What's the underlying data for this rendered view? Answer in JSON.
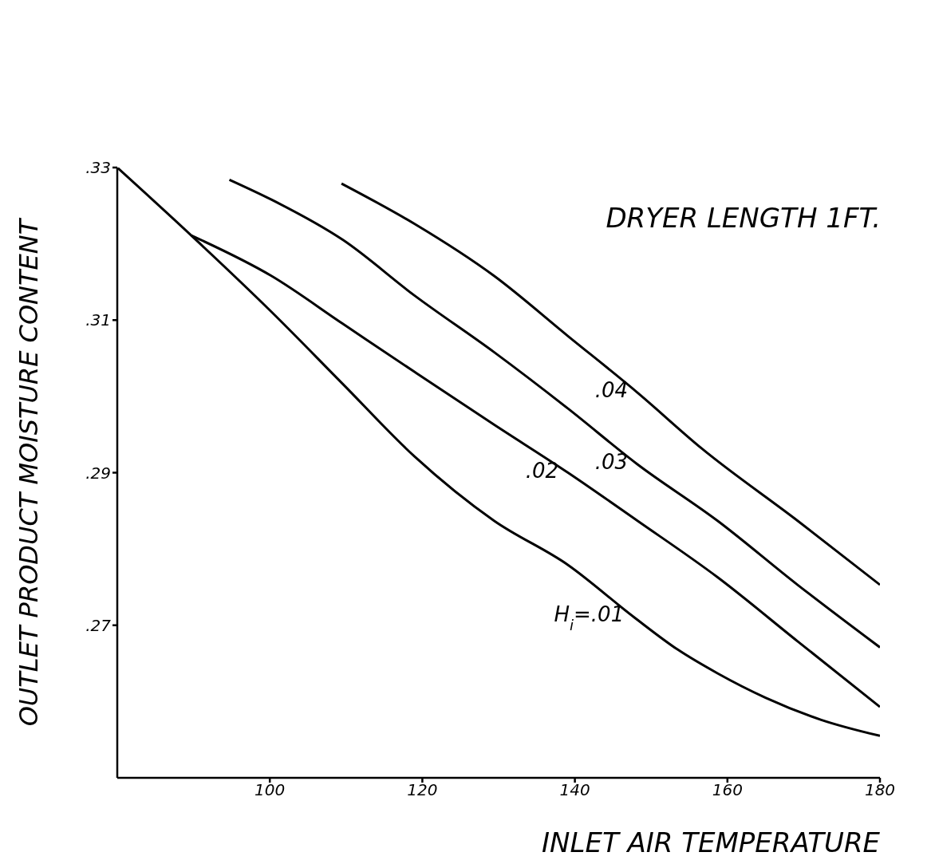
{
  "chart_data": {
    "type": "line",
    "xlabel": "INLET AIR TEMPERATURE",
    "ylabel": "OUTLET PRODUCT MOISTURE CONTENT",
    "annotations": [
      "DRYER LENGTH 1FT."
    ],
    "xlim": [
      80,
      180
    ],
    "xticks": [
      100,
      120,
      140,
      160,
      180
    ],
    "ylim": [
      0.25,
      0.33
    ],
    "yticks": [
      {
        "value": 0.27,
        "label": ".27"
      },
      {
        "value": 0.29,
        "label": ".29"
      },
      {
        "value": 0.31,
        "label": ".31"
      },
      {
        "value": 0.33,
        "label": ".33"
      }
    ],
    "grid": false,
    "legend": false,
    "marker": "none",
    "line_style": "solid",
    "series": [
      {
        "name": "H$_{i}$=.01",
        "color": "#000000",
        "x": [
          80,
          89.7,
          100.2,
          109.6,
          119.0,
          129.4,
          139.1,
          147.7,
          153.5,
          158.7,
          165.0,
          172.3,
          180
        ],
        "values": [
          0.33,
          0.3211,
          0.3111,
          0.3016,
          0.2921,
          0.2837,
          0.2779,
          0.2711,
          0.2668,
          0.2637,
          0.2605,
          0.2576,
          0.2555
        ]
      },
      {
        "name": ".02",
        "color": "#000000",
        "x": [
          89.7,
          100.2,
          109.6,
          119.0,
          129.4,
          139.1,
          148.2,
          158.7,
          169.2,
          180
        ],
        "values": [
          0.3211,
          0.3158,
          0.3095,
          0.3032,
          0.2963,
          0.29,
          0.2837,
          0.2763,
          0.2679,
          0.2593
        ]
      },
      {
        "name": ".03",
        "color": "#000000",
        "x": [
          94.7,
          100.2,
          109.6,
          119.0,
          129.4,
          139.1,
          148.2,
          158.7,
          169.2,
          180
        ],
        "values": [
          0.3284,
          0.3258,
          0.3205,
          0.3132,
          0.3058,
          0.2984,
          0.2911,
          0.2837,
          0.2753,
          0.2671
        ]
      },
      {
        "name": ".04",
        "color": "#000000",
        "x": [
          109.4,
          119.0,
          129.4,
          139.1,
          148.2,
          156.6,
          169.2,
          180
        ],
        "values": [
          0.3279,
          0.3226,
          0.3158,
          0.3079,
          0.3005,
          0.2932,
          0.2837,
          0.2753
        ]
      }
    ]
  }
}
